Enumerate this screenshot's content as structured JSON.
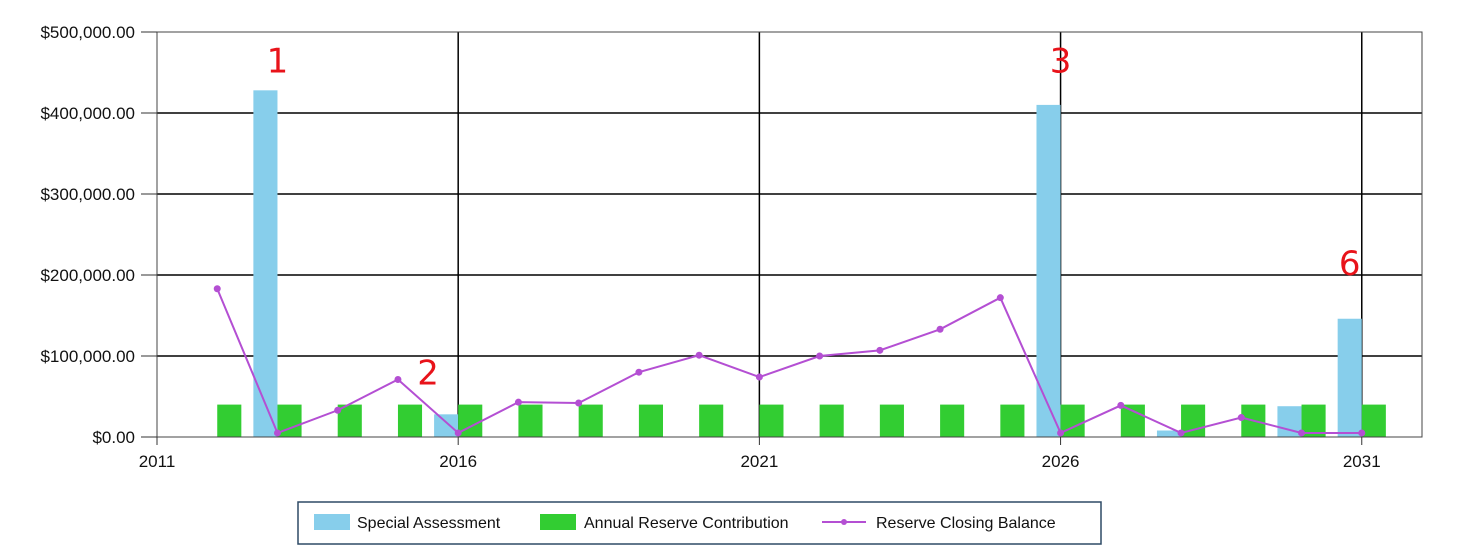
{
  "chart_data": {
    "type": "bar",
    "x_range": [
      2011,
      2032
    ],
    "ylim": [
      0,
      500000
    ],
    "x_ticks": [
      2011,
      2016,
      2021,
      2026,
      2031
    ],
    "x_tick_labels": [
      "2011",
      "2016",
      "2021",
      "2026",
      "2031"
    ],
    "y_ticks": [
      0,
      100000,
      200000,
      300000,
      400000,
      500000
    ],
    "y_tick_labels": [
      "$0.00",
      "$100,000.00",
      "$200,000.00",
      "$300,000.00",
      "$400,000.00",
      "$500,000.00"
    ],
    "grid": true,
    "legend_position": "bottom-center",
    "years": [
      2012,
      2013,
      2014,
      2015,
      2016,
      2017,
      2018,
      2019,
      2020,
      2021,
      2022,
      2023,
      2024,
      2025,
      2026,
      2027,
      2028,
      2029,
      2030,
      2031
    ],
    "series": [
      {
        "name": "Special Assessment",
        "kind": "bar",
        "color": "#87ceeb",
        "values": [
          0,
          428000,
          0,
          0,
          28000,
          0,
          0,
          0,
          0,
          0,
          0,
          0,
          0,
          0,
          410000,
          0,
          8000,
          0,
          38000,
          146000
        ]
      },
      {
        "name": "Annual Reserve Contribution",
        "kind": "bar",
        "color": "#32cd32",
        "values": [
          40000,
          40000,
          40000,
          40000,
          40000,
          40000,
          40000,
          40000,
          40000,
          40000,
          40000,
          40000,
          40000,
          40000,
          40000,
          40000,
          40000,
          40000,
          40000,
          40000
        ]
      },
      {
        "name": "Reserve Closing Balance",
        "kind": "line",
        "color": "#b44fd3",
        "values": [
          183000,
          5000,
          33000,
          71000,
          5000,
          43000,
          42000,
          80000,
          101000,
          74000,
          100000,
          107000,
          133000,
          172000,
          5000,
          39000,
          5000,
          24000,
          5000,
          5000
        ]
      }
    ],
    "annotations": [
      {
        "text": "1",
        "x": 2013,
        "y": 450000
      },
      {
        "text": "2",
        "x": 2015.5,
        "y": 65000
      },
      {
        "text": "3",
        "x": 2026,
        "y": 450000
      },
      {
        "text": "6",
        "x": 2030.8,
        "y": 200000
      }
    ]
  }
}
